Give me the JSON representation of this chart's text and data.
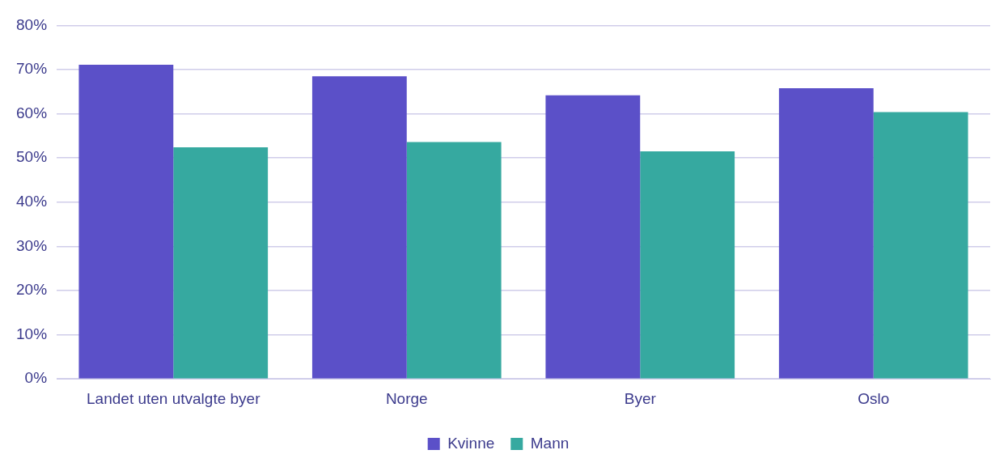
{
  "chart_data": {
    "type": "bar",
    "categories": [
      "Landet uten utvalgte byer",
      "Norge",
      "Byer",
      "Oslo"
    ],
    "series": [
      {
        "name": "Kvinne",
        "color": "#5b50c8",
        "values": [
          71.1,
          68.5,
          64.2,
          65.8
        ]
      },
      {
        "name": "Mann",
        "color": "#36a9a0",
        "values": [
          52.4,
          53.6,
          51.5,
          60.4
        ]
      }
    ],
    "ylim": [
      0,
      80
    ],
    "yticks": [
      {
        "value": 0,
        "label": "0%"
      },
      {
        "value": 10,
        "label": "10%"
      },
      {
        "value": 20,
        "label": "20%"
      },
      {
        "value": 30,
        "label": "30%"
      },
      {
        "value": 40,
        "label": "40%"
      },
      {
        "value": 50,
        "label": "50%"
      },
      {
        "value": 60,
        "label": "60%"
      },
      {
        "value": 70,
        "label": "70%"
      },
      {
        "value": 80,
        "label": "80%"
      }
    ],
    "grid": "y",
    "legend": "bottom"
  }
}
